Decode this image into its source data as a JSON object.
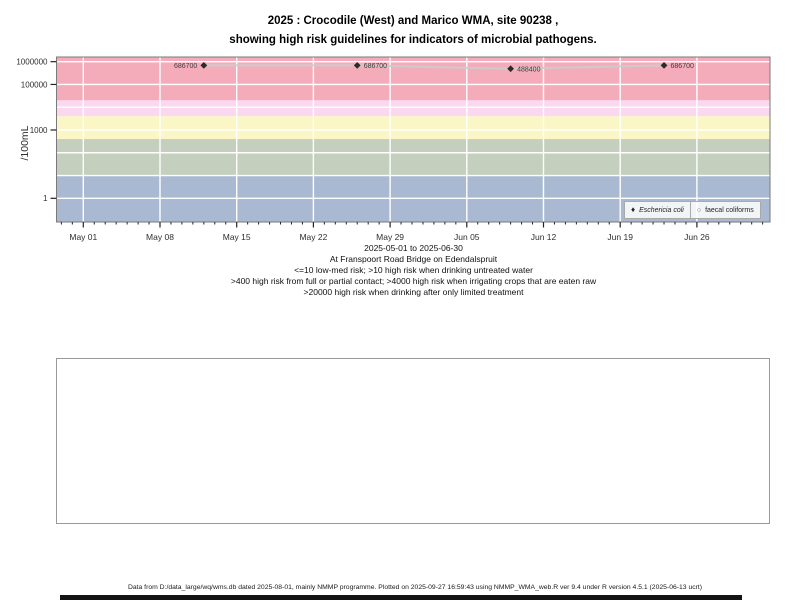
{
  "title": {
    "line1": "2025 : Crocodile (West) and Marico WMA, site 90238 ,",
    "line2": "showing high risk guidelines for indicators of microbial pathogens."
  },
  "y_axis": {
    "title": "/100mL"
  },
  "subtitle": {
    "date_range": "2025-05-01 to 2025-06-30",
    "location": "At Franspoort Road Bridge on Edendalspruit",
    "guideline1": "<=10 low-med risk; >10 high risk when drinking untreated water",
    "guideline2": ">400 high risk from full or partial contact; >4000 high risk when irrigating crops that are eaten raw",
    "guideline3": ">20000 high risk when drinking after only limited treatment"
  },
  "legend": {
    "items": [
      {
        "label": "Eschericia coli",
        "marker": "filled-diamond",
        "italic": true
      },
      {
        "label": "faecal coliforms",
        "marker": "open-circle",
        "italic": false
      }
    ]
  },
  "footer": {
    "text": "Data from D:/data_large/wq/wms.db dated 2025-08-01, mainly NMMP programme. Plotted on 2025-09-27 16:59:43 using NMMP_WMA_web.R ver 9.4 under R version 4.5.1 (2025-06-13 ucrt)"
  },
  "chart_data": {
    "type": "scatter",
    "y_scale": "log10",
    "ylabel": "/100mL",
    "ylim": [
      0.09,
      1600000
    ],
    "x_range": [
      "2025-04-28",
      "2025-07-02"
    ],
    "grid_color": "#ffffff",
    "line_color": "#cccccc",
    "marker_color": "#2b2b2b",
    "y_ticks": [
      {
        "label": "1000000",
        "value": 1000000
      },
      {
        "label": "100000",
        "value": 100000
      },
      {
        "label": "1000",
        "value": 1000
      },
      {
        "label": "1",
        "value": 1
      }
    ],
    "x_ticks": [
      {
        "label": "May 01",
        "day": 0
      },
      {
        "label": "May 08",
        "day": 7
      },
      {
        "label": "May 15",
        "day": 14
      },
      {
        "label": "May 22",
        "day": 21
      },
      {
        "label": "May 29",
        "day": 28
      },
      {
        "label": "Jun 05",
        "day": 35
      },
      {
        "label": "Jun 12",
        "day": 42
      },
      {
        "label": "Jun 19",
        "day": 49
      },
      {
        "label": "Jun 26",
        "day": 56
      }
    ],
    "risk_bands": [
      {
        "range": [
          20000,
          1600000
        ],
        "color": "#f5acba",
        "meaning": ">20000 high risk when drinking after only limited treatment"
      },
      {
        "range": [
          4000,
          20000
        ],
        "color": "#f9d8f0",
        "meaning": ">4000 high risk when irrigating crops that are eaten raw"
      },
      {
        "range": [
          400,
          4000
        ],
        "color": "#faf6c5",
        "meaning": ">400 high risk from full or partial contact"
      },
      {
        "range": [
          10,
          400
        ],
        "color": "#c5cfbe",
        "meaning": ">10 high risk when drinking untreated water"
      },
      {
        "range": [
          0.09,
          10
        ],
        "color": "#aab9d2",
        "meaning": "<=10 low-med risk"
      }
    ],
    "series": [
      {
        "name": "Eschericia coli",
        "marker": "filled-diamond",
        "points": [
          {
            "date": "2025-05-12",
            "day": 11,
            "value": 686700,
            "label": "686700",
            "label_side": "left"
          },
          {
            "date": "2025-05-26",
            "day": 25,
            "value": 686700,
            "label": "686700",
            "label_side": "right"
          },
          {
            "date": "2025-06-09",
            "day": 39,
            "value": 488400,
            "label": "488400",
            "label_side": "right"
          },
          {
            "date": "2025-06-23",
            "day": 53,
            "value": 686700,
            "label": "686700",
            "label_side": "right"
          }
        ]
      },
      {
        "name": "faecal coliforms",
        "marker": "open-circle",
        "points": []
      }
    ]
  }
}
